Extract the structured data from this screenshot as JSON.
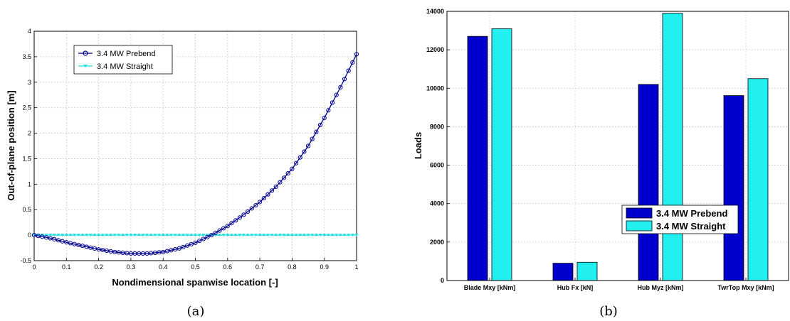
{
  "chart_data": [
    {
      "type": "line",
      "caption": "(a)",
      "xlabel": "Nondimensional spanwise location [-]",
      "ylabel": "Out-of-plane position [m]",
      "xlim": [
        0,
        1
      ],
      "ylim": [
        -0.5,
        4
      ],
      "xticks": [
        "0",
        "0.1",
        "0.2",
        "0.3",
        "0.4",
        "0.5",
        "0.6",
        "0.7",
        "0.8",
        "0.9",
        "1"
      ],
      "yticks": [
        "-0.5",
        "0",
        "0.5",
        "1",
        "1.5",
        "2",
        "2.5",
        "3",
        "3.5",
        "4"
      ],
      "grid": true,
      "legend_position": "top-left",
      "colors": {
        "prebend": "#00008f",
        "straight": "#22e0e0"
      },
      "series": [
        {
          "name": "3.4 MW Prebend",
          "x": [
            0,
            0.05,
            0.1,
            0.15,
            0.2,
            0.25,
            0.3,
            0.35,
            0.4,
            0.45,
            0.5,
            0.55,
            0.6,
            0.65,
            0.7,
            0.75,
            0.8,
            0.85,
            0.9,
            0.95,
            1
          ],
          "y": [
            0,
            -0.06,
            -0.14,
            -0.21,
            -0.28,
            -0.33,
            -0.36,
            -0.36,
            -0.33,
            -0.26,
            -0.15,
            0,
            0.18,
            0.4,
            0.65,
            0.95,
            1.3,
            1.75,
            2.3,
            2.9,
            3.55
          ]
        },
        {
          "name": "3.4 MW Straight",
          "x": [
            0,
            1
          ],
          "y": [
            0,
            0
          ]
        }
      ]
    },
    {
      "type": "bar",
      "caption": "(b)",
      "ylabel": "Loads",
      "ylim": [
        0,
        14000
      ],
      "yticks": [
        "0",
        "2000",
        "4000",
        "6000",
        "8000",
        "10000",
        "12000",
        "14000"
      ],
      "grid": true,
      "legend_position": "center-right",
      "categories": [
        "Blade Mxy [kNm]",
        "Hub Fx [kN]",
        "Hub Myz [kNm]",
        "TwrTop Mxy [kNm]"
      ],
      "colors": {
        "prebend": "#0000cd",
        "straight": "#22f0f0"
      },
      "series": [
        {
          "name": "3.4 MW Prebend",
          "values": [
            12700,
            900,
            10200,
            9620
          ]
        },
        {
          "name": "3.4 MW Straight",
          "values": [
            13100,
            950,
            13900,
            10500
          ]
        }
      ]
    }
  ]
}
